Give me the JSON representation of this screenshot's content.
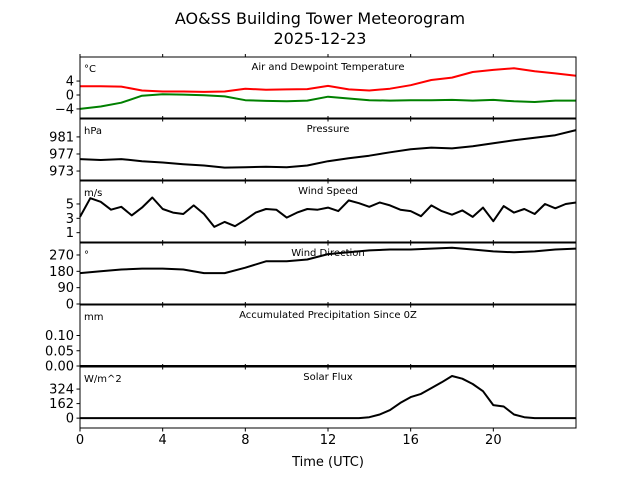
{
  "chart_data": {
    "type": "line",
    "title": "AO&SS Building Tower Meteorogram",
    "subtitle": "2025-12-23",
    "xlabel": "Time (UTC)",
    "xlim": [
      0,
      24
    ],
    "xticks": [
      0,
      4,
      8,
      12,
      16,
      20
    ],
    "panels": [
      {
        "title": "Air and Dewpoint Temperature",
        "unit": "°C",
        "ylim": [
          -6.6,
          10.9
        ],
        "yticks": [
          4,
          0,
          -4
        ],
        "ytick_labels": [
          "4",
          "0",
          "−4"
        ],
        "series": [
          {
            "name": "Air Temperature",
            "color": "#ff0000",
            "values": [
              2.5,
              2.5,
              2.4,
              1.3,
              1.0,
              1.0,
              0.9,
              1.0,
              1.8,
              1.5,
              1.6,
              1.7,
              2.6,
              1.6,
              1.3,
              1.8,
              2.8,
              4.3,
              5.0,
              6.6,
              7.2,
              7.7,
              6.8,
              6.2,
              5.5
            ]
          },
          {
            "name": "Dewpoint Temperature",
            "color": "#008000",
            "values": [
              -4.0,
              -3.3,
              -2.2,
              -0.2,
              0.2,
              0.1,
              -0.1,
              -0.4,
              -1.5,
              -1.7,
              -1.8,
              -1.6,
              -0.5,
              -1.0,
              -1.5,
              -1.6,
              -1.5,
              -1.5,
              -1.4,
              -1.6,
              -1.4,
              -1.8,
              -2.0,
              -1.6,
              -1.6
            ]
          }
        ]
      },
      {
        "title": "Pressure",
        "unit": "hPa",
        "ylim": [
          970.9,
          985.2
        ],
        "yticks": [
          981,
          977,
          973
        ],
        "ytick_labels": [
          "981",
          "977",
          "973"
        ],
        "series": [
          {
            "name": "Pressure",
            "color": "#000000",
            "values": [
              975.8,
              975.6,
              975.8,
              975.3,
              975.0,
              974.6,
              974.3,
              973.8,
              973.9,
              974.0,
              973.9,
              974.3,
              975.3,
              976.0,
              976.6,
              977.4,
              978.1,
              978.5,
              978.3,
              978.8,
              979.5,
              980.2,
              980.8,
              981.4,
              982.6
            ]
          }
        ]
      },
      {
        "title": "Wind Speed",
        "unit": "m/s",
        "ylim": [
          -0.3,
          8.2
        ],
        "yticks": [
          5,
          3,
          1
        ],
        "ytick_labels": [
          "5",
          "3",
          "1"
        ],
        "series": [
          {
            "name": "Wind Speed",
            "color": "#000000",
            "values": [
              3.2,
              5.8,
              5.3,
              4.2,
              4.6,
              3.4,
              4.5,
              5.9,
              4.3,
              3.8,
              3.6,
              4.8,
              3.6,
              1.8,
              2.5,
              1.9,
              2.8,
              3.8,
              4.3,
              4.2,
              3.1,
              3.8,
              4.3,
              4.2,
              4.5,
              4.0,
              5.5,
              5.1,
              4.6,
              5.2,
              4.8,
              4.2,
              4.0,
              3.3,
              4.8,
              4.0,
              3.5,
              4.1,
              3.2,
              4.5,
              2.6,
              4.7,
              3.8,
              4.3,
              3.6,
              5.0,
              4.4,
              5.0,
              5.2
            ]
          }
        ]
      },
      {
        "title": "Wind Direction",
        "unit": "°",
        "ylim": [
          0,
          336
        ],
        "yticks": [
          270,
          180,
          90,
          0
        ],
        "ytick_labels": [
          "270",
          "180",
          "90",
          "0"
        ],
        "series": [
          {
            "name": "Wind Direction",
            "color": "#000000",
            "values": [
              170,
              180,
              190,
              195,
              195,
              190,
              170,
              170,
              200,
              235,
              235,
              245,
              275,
              285,
              295,
              300,
              300,
              305,
              310,
              300,
              290,
              285,
              290,
              300,
              305
            ]
          }
        ]
      },
      {
        "title": "Accumulated Precipitation Since 0Z",
        "unit": "mm",
        "ylim": [
          0,
          0.2
        ],
        "yticks": [
          0.1,
          0.05,
          0.0
        ],
        "ytick_labels": [
          "0.10",
          "0.05",
          "0.00"
        ],
        "series": [
          {
            "name": "Accumulated Precipitation",
            "color": "#000000",
            "values": [
              0,
              0,
              0,
              0,
              0,
              0,
              0,
              0,
              0,
              0,
              0,
              0,
              0,
              0,
              0,
              0,
              0,
              0,
              0,
              0,
              0,
              0,
              0,
              0,
              0
            ]
          }
        ]
      },
      {
        "title": "Solar Flux",
        "unit": "W/m^2",
        "ylim": [
          -110,
          570
        ],
        "yticks": [
          324,
          162,
          0
        ],
        "ytick_labels": [
          "324",
          "162",
          "0"
        ],
        "series": [
          {
            "name": "Solar Flux",
            "color": "#000000",
            "values": [
              0,
              0,
              0,
              0,
              0,
              0,
              0,
              0,
              0,
              0,
              0,
              0,
              0,
              0,
              0,
              0,
              0,
              0,
              0,
              0,
              0,
              0,
              0,
              0,
              0,
              0,
              0,
              0,
              10,
              40,
              90,
              170,
              235,
              270,
              335,
              400,
              470,
              440,
              380,
              300,
              145,
              130,
              40,
              10,
              0,
              0,
              0,
              0,
              0
            ]
          }
        ]
      }
    ]
  }
}
